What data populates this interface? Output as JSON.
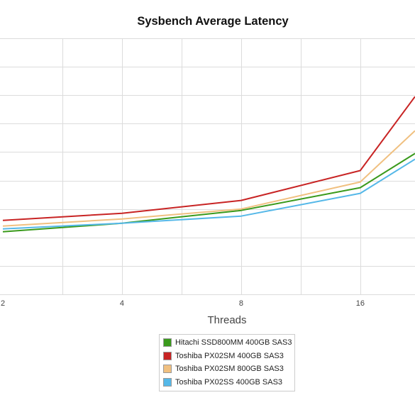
{
  "chart_data": {
    "type": "line",
    "title": "Sysbench Average Latency",
    "xlabel": "Threads",
    "ylabel": "",
    "x": [
      "2",
      "4",
      "8",
      "16"
    ],
    "x_axis": {
      "scale": "log2",
      "range": [
        2,
        22
      ]
    },
    "y_axis": {
      "range": [
        0,
        9
      ],
      "gridlines": 9,
      "tick_labels_visible": false
    },
    "grid": true,
    "legend_position": "bottom-center",
    "series": [
      {
        "name": "Hitachi SSD800MM 400GB SAS3",
        "color": "#3a9a1c",
        "points": [
          [
            2,
            2.2
          ],
          [
            4,
            2.5
          ],
          [
            8,
            2.95
          ],
          [
            16,
            3.75
          ],
          [
            22,
            4.95
          ]
        ]
      },
      {
        "name": "Toshiba PX02SM 400GB SAS3",
        "color": "#c82424",
        "points": [
          [
            2,
            2.6
          ],
          [
            4,
            2.85
          ],
          [
            8,
            3.3
          ],
          [
            16,
            4.35
          ],
          [
            22,
            6.95
          ]
        ]
      },
      {
        "name": "Toshiba PX02SM 800GB SAS3",
        "color": "#f0c080",
        "points": [
          [
            2,
            2.4
          ],
          [
            4,
            2.65
          ],
          [
            8,
            3.0
          ],
          [
            16,
            3.95
          ],
          [
            22,
            5.75
          ]
        ]
      },
      {
        "name": "Toshiba PX02SS 400GB SAS3",
        "color": "#55b8e8",
        "points": [
          [
            2,
            2.3
          ],
          [
            4,
            2.5
          ],
          [
            8,
            2.75
          ],
          [
            16,
            3.55
          ],
          [
            22,
            4.75
          ]
        ]
      }
    ]
  }
}
